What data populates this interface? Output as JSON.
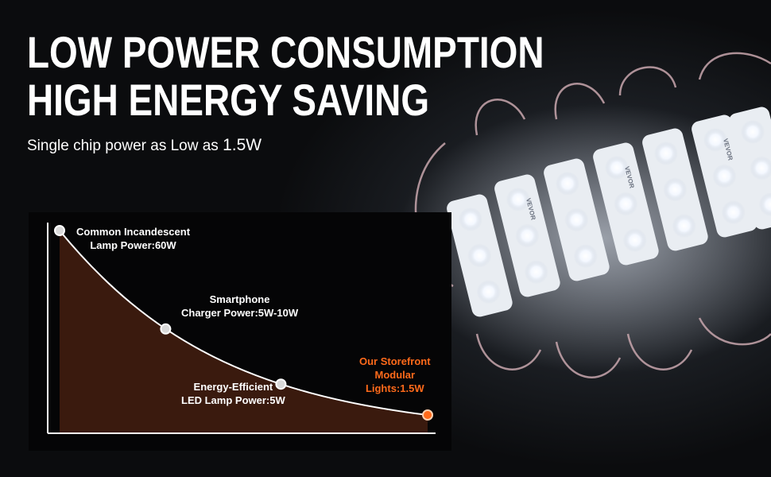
{
  "headline": {
    "line1": "LOW POWER CONSUMPTION",
    "line2": "HIGH ENERGY SAVING"
  },
  "subhead": {
    "prefix": "Single chip power as Low as ",
    "value": "1.5W"
  },
  "chart_data": {
    "type": "area",
    "points": [
      {
        "label_line1": "Common Incandescent",
        "label_line2": "Lamp Power:60W",
        "power_w": 60
      },
      {
        "label_line1": "Smartphone",
        "label_line2": "Charger Power:5W-10W",
        "power_w": "5-10"
      },
      {
        "label_line1": "Energy-Efficient",
        "label_line2": "LED Lamp Power:5W",
        "power_w": 5
      },
      {
        "label_line1": "Our Storefront",
        "label_line2": "Modular",
        "label_line3": "Lights:1.5W",
        "power_w": 1.5
      }
    ],
    "highlight_color": "#ff6a1a",
    "fill_color": "#3a1a0e",
    "grid": false
  },
  "product_image": {
    "module_text": "VEVOR"
  }
}
